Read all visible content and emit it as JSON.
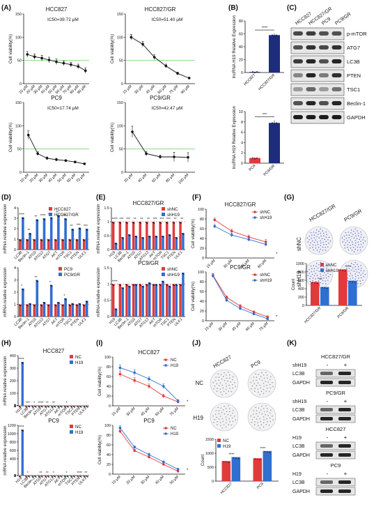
{
  "figure": {
    "panel_letters": [
      "(A)",
      "(B)",
      "(C)",
      "(D)",
      "(E)",
      "(F)",
      "(G)",
      "(H)",
      "(I)",
      "(J)",
      "(K)"
    ]
  },
  "chart_data": [
    {
      "panel": "A",
      "type": "line",
      "title": "HCC827",
      "annotation": "IC50=39.72 μM",
      "ylabel": "Cell viability(%)",
      "ylim": [
        0,
        150
      ],
      "yticks": [
        0,
        50,
        100,
        150
      ],
      "hline": 50,
      "categories": [
        "10 μM",
        "20 μM",
        "30 μM",
        "40 μM",
        "50 μM",
        "60 μM",
        "70 μM",
        "80 μM",
        "90 μM"
      ],
      "series": [
        {
          "values": [
            63,
            58,
            55,
            51,
            47,
            44,
            41,
            37,
            28
          ],
          "err": [
            6,
            6,
            6,
            6,
            6,
            5,
            5,
            5,
            6
          ]
        }
      ]
    },
    {
      "panel": "A",
      "type": "line",
      "title": "HCC827/GR",
      "annotation": "IC50=51.40 μM",
      "ylabel": "Cell viability(%)",
      "ylim": [
        0,
        150
      ],
      "yticks": [
        0,
        50,
        100,
        150
      ],
      "hline": 50,
      "categories": [
        "15 μM",
        "30 μM",
        "45 μM",
        "60 μM",
        "75 μM",
        "90 μM"
      ],
      "series": [
        {
          "values": [
            100,
            85,
            57,
            38,
            22,
            12
          ],
          "err": [
            6,
            6,
            5,
            4,
            3,
            2
          ]
        }
      ]
    },
    {
      "panel": "A",
      "type": "line",
      "title": "PC9",
      "annotation": "IC50=17.74 μM",
      "ylabel": "Cell viability(%)",
      "ylim": [
        0,
        150
      ],
      "yticks": [
        0,
        50,
        100,
        150
      ],
      "hline": 50,
      "categories": [
        "10 μM",
        "20 μM",
        "30 μM",
        "40 μM",
        "50 μM",
        "60 μM",
        "70 μM"
      ],
      "series": [
        {
          "values": [
            80,
            40,
            30,
            27,
            25,
            22,
            18
          ],
          "err": [
            9,
            4,
            3,
            3,
            2,
            2,
            2
          ]
        }
      ]
    },
    {
      "panel": "A",
      "type": "line",
      "title": "PC9/GR",
      "annotation": "IC50=42.47 μM",
      "ylabel": "Cell viability(%)",
      "ylim": [
        0,
        150
      ],
      "yticks": [
        0,
        50,
        100,
        150
      ],
      "hline": 50,
      "categories": [
        "20 μM",
        "40 μM",
        "60 μM",
        "80 μM",
        "100 μM"
      ],
      "series": [
        {
          "values": [
            87,
            40,
            33,
            33,
            32
          ],
          "err": [
            12,
            5,
            4,
            10,
            10
          ]
        }
      ]
    },
    {
      "panel": "B",
      "type": "bar",
      "sig": "****",
      "ylabel": "lncRNA H19 Relative Expression",
      "ylim": [
        0,
        80
      ],
      "yticks": [
        0,
        20,
        40,
        60,
        80
      ],
      "categories": [
        "HCC827",
        "HCC827/GR"
      ],
      "colors": [
        "#2a3a9a",
        "#1e2c7e"
      ],
      "values": [
        1,
        58
      ],
      "err": [
        0.3,
        2.5
      ]
    },
    {
      "panel": "B",
      "type": "bar",
      "sig": "***",
      "ylabel": "lncRNA H19 Relative Expression",
      "ylim": [
        0,
        10
      ],
      "yticks": [
        0,
        2,
        4,
        6,
        8,
        10
      ],
      "categories": [
        "PC9",
        "PC9/GR"
      ],
      "colors": [
        "#e13a3a",
        "#1e2c7e"
      ],
      "values": [
        1,
        7.8
      ],
      "err": [
        0.15,
        0.5
      ]
    },
    {
      "panel": "D",
      "type": "bar",
      "ylabel": "mRNA relative expression",
      "ylim": [
        0,
        4
      ],
      "yticks": [
        0,
        1,
        2,
        3,
        4
      ],
      "dashed": 1,
      "categories": [
        "LC3B",
        "Beclin-1",
        "ATG5",
        "ATG12",
        "ATG7",
        "AKT",
        "mTOR",
        "TSC1",
        "PTEN",
        "ULK1"
      ],
      "sig": [
        "****",
        "**",
        "**",
        "****",
        "***",
        "**",
        "***",
        "**",
        "***",
        "***"
      ],
      "series": [
        {
          "name": "HCC827",
          "color": "#e13a3a",
          "values": [
            1,
            1,
            1,
            1,
            1,
            1,
            1,
            1,
            1,
            1
          ]
        },
        {
          "name": "HCC827/GR",
          "color": "#2f6fd0",
          "values": [
            3.1,
            1.6,
            2.9,
            3.0,
            3.1,
            3.3,
            3.0,
            2.0,
            2.1,
            2.0
          ]
        }
      ]
    },
    {
      "panel": "D",
      "type": "bar",
      "ylabel": "mRNA relative expression",
      "ylim": [
        0,
        4
      ],
      "yticks": [
        0,
        1,
        2,
        3,
        4
      ],
      "dashed": 1,
      "categories": [
        "LC3B",
        "Beclin-1",
        "ATG5",
        "ATG12",
        "ATG7",
        "AKT",
        "mTOR",
        "TSC1",
        "PTEN",
        "ULK1"
      ],
      "sig": [
        "*",
        "",
        "**",
        "",
        "*",
        "",
        "*",
        "",
        "",
        ""
      ],
      "series": [
        {
          "name": "PC9",
          "color": "#e13a3a",
          "values": [
            1,
            1,
            1,
            1,
            1,
            1,
            1,
            1,
            1,
            1
          ]
        },
        {
          "name": "PC9/GR",
          "color": "#2f6fd0",
          "values": [
            2.3,
            1.1,
            3.0,
            1.2,
            2.6,
            1.2,
            1.5,
            1.1,
            1.1,
            1.3
          ]
        }
      ]
    },
    {
      "panel": "E",
      "type": "bar",
      "title": "HCC827/GR",
      "ylabel": "mRNA relative expression",
      "ylim": [
        0,
        1.5
      ],
      "yticks": [
        0.0,
        0.5,
        1.0,
        1.5
      ],
      "dashed": 1,
      "categories": [
        "H19",
        "LC3B",
        "Beclin-1",
        "ATG5",
        "ATG7",
        "ATG12",
        "AKT",
        "mTOR",
        "TSC1",
        "PTEN",
        "ULK1"
      ],
      "sig": [
        "****",
        "***",
        "***",
        "**",
        "**",
        "**",
        "***",
        "***",
        "***",
        "**",
        "**"
      ],
      "series": [
        {
          "name": "shNC",
          "color": "#e13a3a",
          "values": [
            1,
            1,
            1,
            1,
            1,
            1,
            1,
            1,
            1,
            1,
            1
          ]
        },
        {
          "name": "shH19",
          "color": "#2f6fd0",
          "values": [
            0.25,
            0.45,
            0.55,
            0.5,
            0.45,
            0.5,
            0.5,
            0.5,
            0.55,
            0.45,
            0.6
          ]
        }
      ]
    },
    {
      "panel": "E",
      "type": "bar",
      "title": "PC9/GR",
      "ylabel": "mRNA relative expression",
      "ylim": [
        0,
        1.5
      ],
      "yticks": [
        0.0,
        0.5,
        1.0,
        1.5
      ],
      "dashed": 1,
      "categories": [
        "H19",
        "LC3B",
        "Beclin-1",
        "ATG5",
        "ATG7",
        "ATG12",
        "AKT",
        "mTOR",
        "TSC1",
        "PTEN",
        "ULK1"
      ],
      "sig": [
        "****",
        "",
        "",
        "",
        "",
        "",
        "",
        "",
        "",
        "",
        ""
      ],
      "series": [
        {
          "name": "shNC",
          "color": "#e13a3a",
          "values": [
            1,
            1,
            1,
            1,
            1,
            1,
            1,
            1,
            1,
            1,
            1
          ]
        },
        {
          "name": "shH19",
          "color": "#2f6fd0",
          "values": [
            0.25,
            0.9,
            0.95,
            1.0,
            0.95,
            1.05,
            1.0,
            1.1,
            0.95,
            1.0,
            1.35
          ]
        }
      ]
    },
    {
      "panel": "F",
      "type": "line",
      "title": "HCC827/GR",
      "ylabel": "Cell viability(%)",
      "ylim": [
        0,
        100
      ],
      "yticks": [
        0,
        20,
        40,
        60,
        80,
        100
      ],
      "categories": [
        "15 μM",
        "30 μM",
        "45 μM",
        "60 μM"
      ],
      "sig": "*",
      "series": [
        {
          "name": "shNC",
          "color": "#e13a3a",
          "values": [
            78,
            55,
            43,
            33
          ],
          "err": [
            4,
            4,
            4,
            5
          ]
        },
        {
          "name": "shH19",
          "color": "#2f6fd0",
          "values": [
            65,
            47,
            38,
            28
          ],
          "err": [
            4,
            4,
            4,
            4
          ]
        }
      ]
    },
    {
      "panel": "F",
      "type": "line",
      "title": "PC9/GR",
      "ylabel": "Cell viability(%)",
      "ylim": [
        0,
        100
      ],
      "yticks": [
        0,
        20,
        40,
        60,
        80,
        100
      ],
      "categories": [
        "15 μM",
        "30 μM",
        "45 μM",
        "60 μM",
        "75 μM"
      ],
      "sig": "*",
      "series": [
        {
          "name": "shNC",
          "color": "#e13a3a",
          "values": [
            93,
            48,
            30,
            18,
            8
          ],
          "err": [
            4,
            3,
            3,
            2,
            2
          ]
        },
        {
          "name": "shH19",
          "color": "#2f6fd0",
          "values": [
            92,
            42,
            25,
            14,
            4
          ],
          "err": [
            4,
            3,
            3,
            2,
            2
          ]
        }
      ]
    },
    {
      "panel": "G",
      "type": "bar",
      "ylabel": "Count",
      "ylim": [
        0,
        1000
      ],
      "yticks": [
        0,
        200,
        400,
        600,
        800,
        1000
      ],
      "categories": [
        "HCC827/GR",
        "PC9/GR"
      ],
      "sig": [
        "***",
        "****"
      ],
      "series": [
        {
          "name": "shNC",
          "color": "#e13a3a",
          "values": [
            560,
            860
          ]
        },
        {
          "name": "shH19",
          "color": "#2f6fd0",
          "values": [
            440,
            590
          ]
        }
      ]
    },
    {
      "panel": "H",
      "type": "bar",
      "title": "HCC827",
      "ylabel": "mRNA relative expression",
      "ylim": [
        0,
        400
      ],
      "yticks": [
        0,
        1,
        2,
        3,
        100,
        200,
        300,
        400
      ],
      "dashed": 1,
      "categories": [
        "H19",
        "LC3B",
        "Beclin-1",
        "ATG5",
        "ATG7",
        "ATG12",
        "AKT",
        "mTOR",
        "TSC1",
        "PTEN",
        "ULK1"
      ],
      "sig": [
        "****",
        "***",
        "*",
        "****",
        "**",
        "**",
        "",
        "*",
        "",
        "",
        ""
      ],
      "series": [
        {
          "name": "NC",
          "color": "#e13a3a",
          "values": [
            1,
            1,
            1,
            1,
            1,
            1,
            1,
            1,
            1,
            1,
            1
          ]
        },
        {
          "name": "H19",
          "color": "#2f6fd0",
          "values": [
            350,
            2.9,
            1.4,
            2.2,
            1.7,
            1.6,
            1.2,
            1.4,
            1.1,
            1.1,
            1.1
          ]
        }
      ]
    },
    {
      "panel": "H",
      "type": "bar",
      "title": "PC9",
      "ylabel": "mRNA relative expression",
      "ylim": [
        0,
        1200
      ],
      "yticks": [
        0,
        1,
        2,
        3,
        400,
        600,
        800,
        1000,
        1200
      ],
      "dashed": 1,
      "categories": [
        "H19",
        "LC3B",
        "Beclin-1",
        "ATG5",
        "ATG7",
        "ATG12",
        "AKT",
        "mTOR",
        "TSC1",
        "PTEN",
        "ULK1"
      ],
      "sig": [
        "****",
        "*",
        "",
        "**",
        "**",
        "*",
        "",
        "*",
        "",
        "****",
        "**"
      ],
      "series": [
        {
          "name": "NC",
          "color": "#e13a3a",
          "values": [
            1,
            1,
            1,
            1,
            1,
            1,
            1,
            1,
            1,
            1,
            1
          ]
        },
        {
          "name": "H19",
          "color": "#2f6fd0",
          "values": [
            1100,
            1.8,
            1.1,
            1.6,
            1.7,
            1.5,
            1.2,
            1.4,
            1.1,
            2.1,
            1.8
          ]
        }
      ]
    },
    {
      "panel": "I",
      "type": "line",
      "title": "HCC827",
      "ylabel": "Cell viability(%)",
      "ylim": [
        0,
        100
      ],
      "yticks": [
        0,
        20,
        40,
        60,
        80,
        100
      ],
      "categories": [
        "15 μM",
        "30 μM",
        "45 μM",
        "60 μM",
        "75 μM"
      ],
      "sig": "*",
      "series": [
        {
          "name": "NC",
          "color": "#e13a3a",
          "values": [
            65,
            52,
            40,
            20,
            8
          ],
          "err": [
            6,
            6,
            5,
            4,
            3
          ]
        },
        {
          "name": "H19",
          "color": "#2f6fd0",
          "values": [
            78,
            68,
            55,
            40,
            10
          ],
          "err": [
            6,
            6,
            5,
            5,
            3
          ]
        }
      ]
    },
    {
      "panel": "I",
      "type": "line",
      "title": "PC9",
      "ylabel": "Cell viability(%)",
      "ylim": [
        0,
        100
      ],
      "yticks": [
        0,
        20,
        40,
        60,
        80,
        100
      ],
      "categories": [
        "10 μM",
        "20 μM",
        "30 μM",
        "40 μM",
        "50 μM"
      ],
      "sig": "*",
      "series": [
        {
          "name": "NC",
          "color": "#e13a3a",
          "values": [
            88,
            48,
            35,
            20,
            6
          ],
          "err": [
            4,
            3,
            3,
            2,
            2
          ]
        },
        {
          "name": "H19",
          "color": "#2f6fd0",
          "values": [
            95,
            55,
            40,
            25,
            10
          ],
          "err": [
            4,
            3,
            3,
            2,
            2
          ]
        }
      ]
    },
    {
      "panel": "J",
      "type": "bar",
      "ylabel": "Count",
      "ylim": [
        0,
        1500
      ],
      "yticks": [
        0,
        500,
        1000,
        1500
      ],
      "categories": [
        "HCC827",
        "PC9"
      ],
      "sig": [
        "****",
        "****"
      ],
      "series": [
        {
          "name": "NC",
          "color": "#e13a3a",
          "values": [
            720,
            820
          ]
        },
        {
          "name": "H19",
          "color": "#2f6fd0",
          "values": [
            860,
            1080
          ]
        }
      ]
    }
  ],
  "panel_C": {
    "columns": [
      "HCC827",
      "HCC827/GR",
      "PC9",
      "PC9/GR"
    ],
    "bands": [
      "p-mTOR",
      "ATG7",
      "LC3B",
      "PTEN",
      "TSC1",
      "Beclin-1",
      "GAPDH"
    ]
  },
  "panel_G": {
    "columns": [
      "HCC827/GR",
      "PC9/GR"
    ],
    "rows": [
      "shNC",
      "shH19"
    ]
  },
  "panel_J": {
    "columns": [
      "HCC827",
      "PC9"
    ],
    "rows": [
      "NC",
      "H19"
    ]
  },
  "panel_K": {
    "blocks": [
      {
        "title": "HCC827/GR",
        "treatment": "shH19",
        "signs": [
          "-",
          "+"
        ],
        "bands": [
          "LC3B",
          "GAPDH"
        ]
      },
      {
        "title": "PC9/GR",
        "treatment": "shH19",
        "signs": [
          "-",
          "+"
        ],
        "bands": [
          "LC3B",
          "GAPDH"
        ]
      },
      {
        "title": "HCC827",
        "treatment": "H19",
        "signs": [
          "-",
          "+"
        ],
        "bands": [
          "LC3B",
          "GAPDH"
        ]
      },
      {
        "title": "PC9",
        "treatment": "H19",
        "signs": [
          "-",
          "+"
        ],
        "bands": [
          "LC3B",
          "GAPDH"
        ]
      }
    ]
  }
}
